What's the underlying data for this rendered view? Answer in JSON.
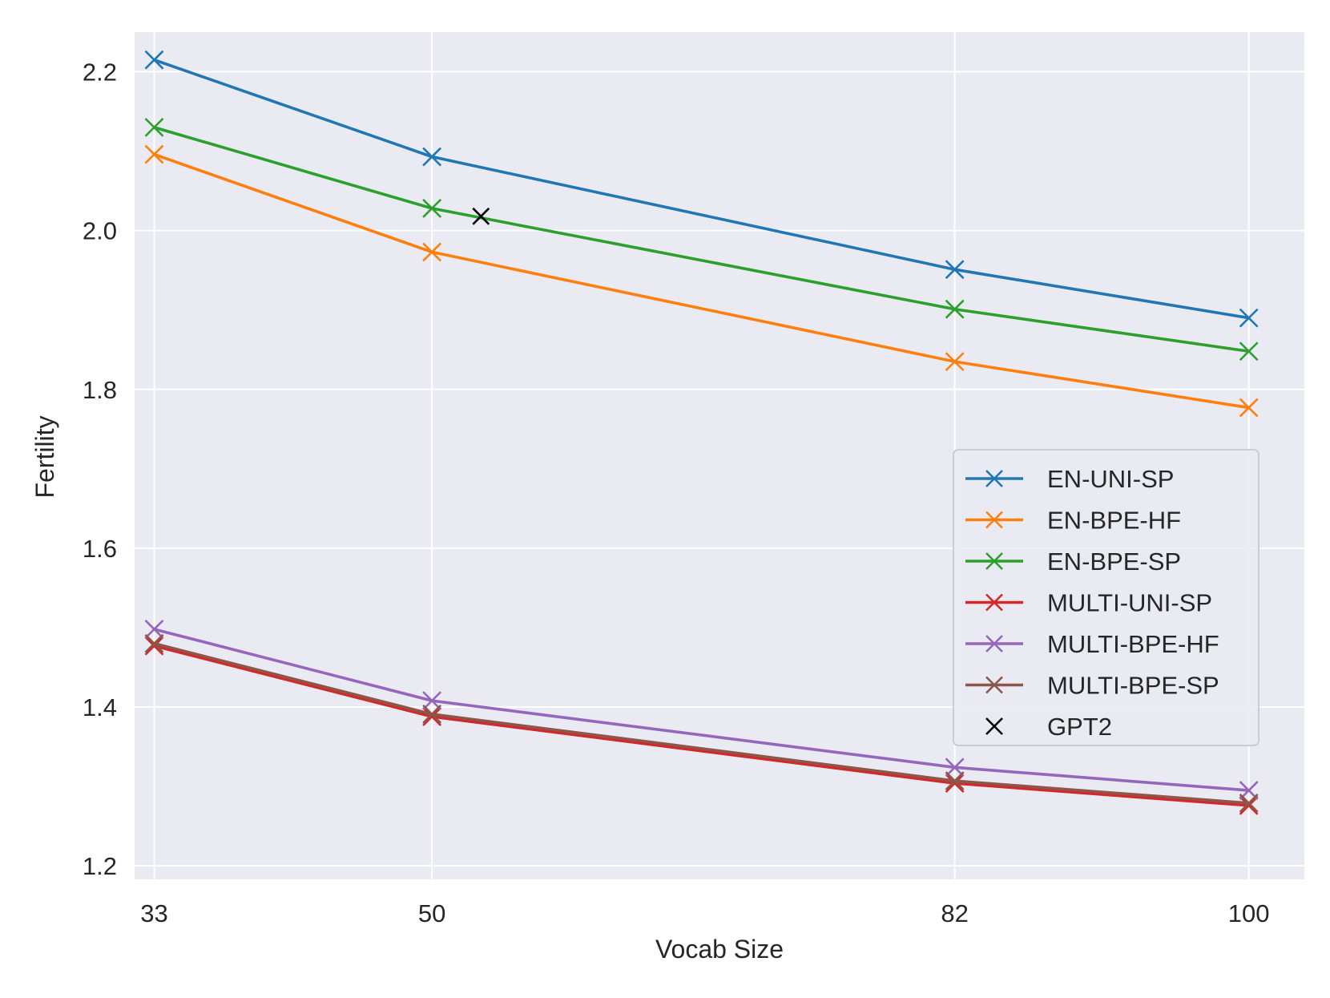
{
  "chart_data": {
    "type": "line",
    "title": "",
    "xlabel": "Vocab Size",
    "ylabel": "Fertility",
    "x": [
      33,
      50,
      82,
      100
    ],
    "x_ticks": [
      "33",
      "50",
      "82",
      "100"
    ],
    "xlim": [
      31.8,
      103.4
    ],
    "y_ticks": [
      "1.2",
      "1.4",
      "1.6",
      "1.8",
      "2.0",
      "2.2"
    ],
    "ylim": [
      1.183,
      2.25
    ],
    "grid": true,
    "legend_position": "center-right",
    "series": [
      {
        "name": "EN-UNI-SP",
        "color": "#1f77b4",
        "marker": "x",
        "line": true,
        "values": [
          2.215,
          2.093,
          1.951,
          1.89
        ]
      },
      {
        "name": "EN-BPE-HF",
        "color": "#ff7f0e",
        "marker": "x",
        "line": true,
        "values": [
          2.096,
          1.973,
          1.835,
          1.777
        ]
      },
      {
        "name": "EN-BPE-SP",
        "color": "#2ca02c",
        "marker": "x",
        "line": true,
        "values": [
          2.13,
          2.028,
          1.901,
          1.848
        ]
      },
      {
        "name": "MULTI-UNI-SP",
        "color": "#d62728",
        "marker": "x",
        "line": true,
        "values": [
          1.477,
          1.388,
          1.304,
          1.276
        ]
      },
      {
        "name": "MULTI-BPE-HF",
        "color": "#9467bd",
        "marker": "x",
        "line": true,
        "values": [
          1.498,
          1.408,
          1.324,
          1.295
        ]
      },
      {
        "name": "MULTI-BPE-SP",
        "color": "#8c564b",
        "marker": "x",
        "line": true,
        "values": [
          1.48,
          1.391,
          1.307,
          1.279
        ]
      },
      {
        "name": "GPT2",
        "color": "#000000",
        "marker": "x",
        "line": false,
        "points": [
          [
            53,
            2.018
          ]
        ]
      }
    ]
  }
}
